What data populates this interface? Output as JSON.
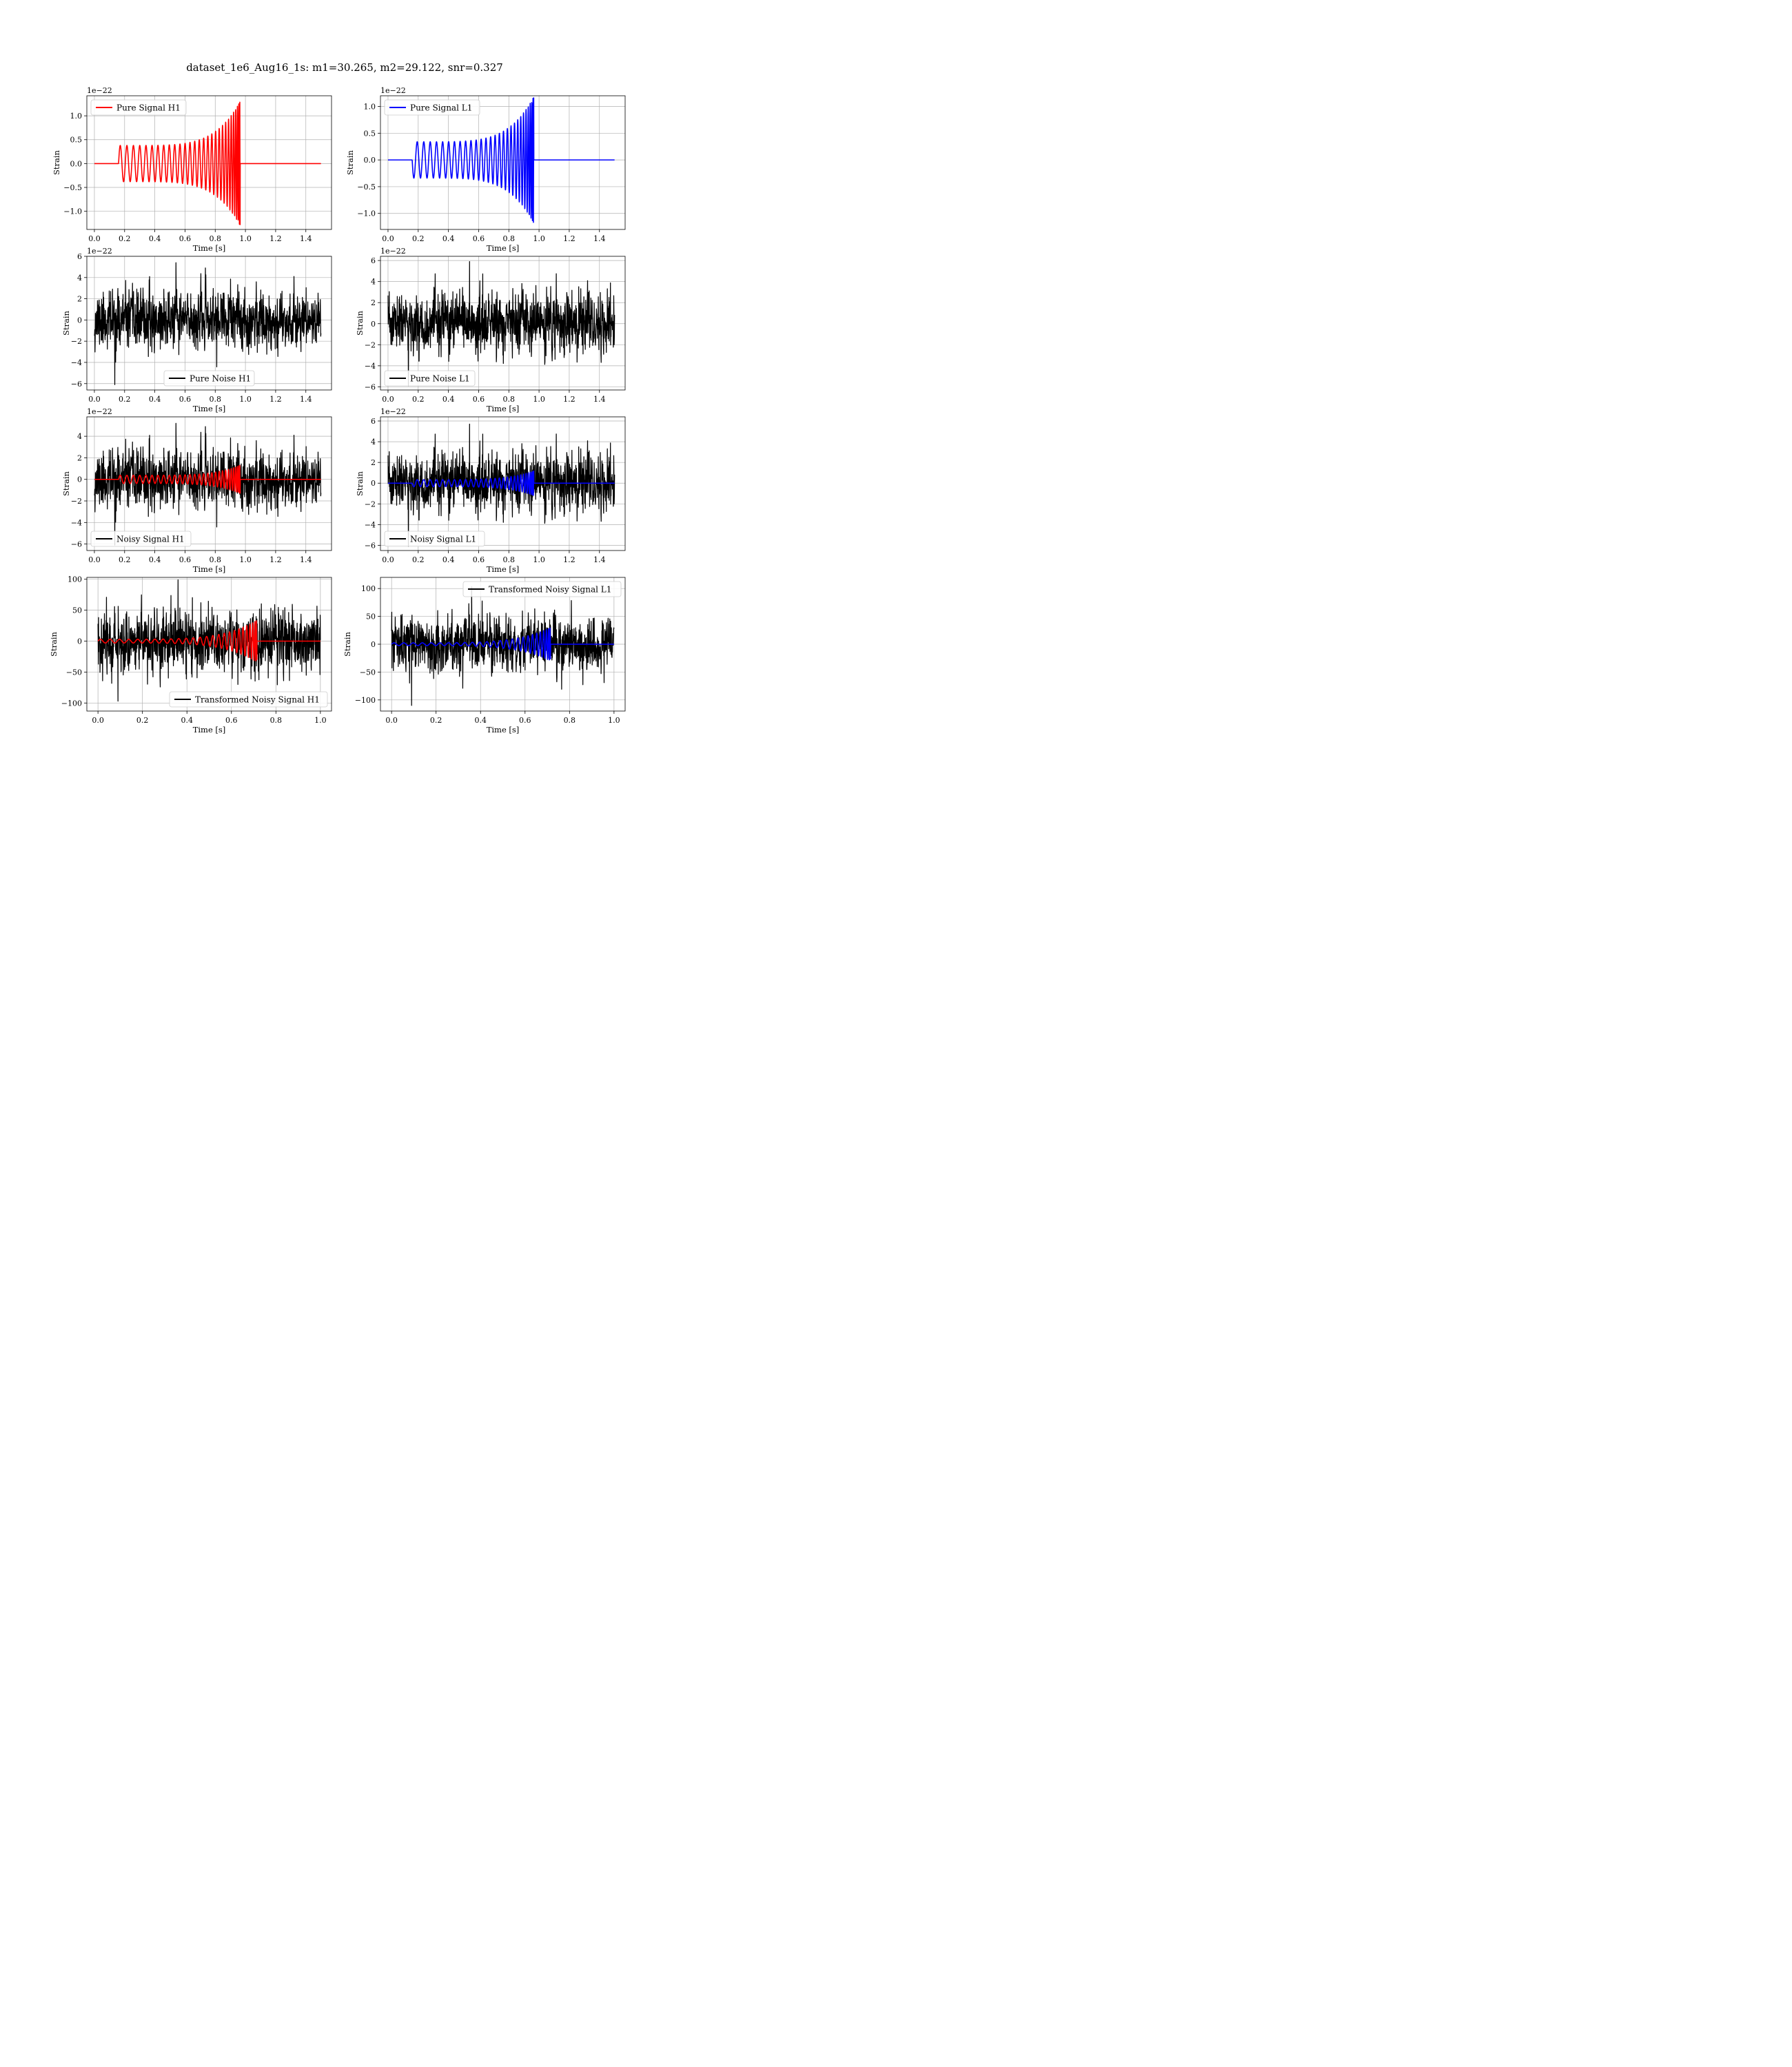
{
  "figure": {
    "title": "dataset_1e6_Aug16_1s: m1=30.265, m2=29.122, snr=0.327"
  },
  "colors": {
    "h1": "#ff0000",
    "l1": "#0000ff",
    "noise": "#000000",
    "grid": "#b0b0b0"
  },
  "chart_data": [
    {
      "id": "pure-signal-h1",
      "type": "line",
      "title": "",
      "xlabel": "Time [s]",
      "ylabel": "Strain",
      "xlim": [
        -0.05,
        1.57
      ],
      "ylim": [
        -1.38,
        1.42
      ],
      "xticks": [
        0.0,
        0.2,
        0.4,
        0.6,
        0.8,
        1.0,
        1.2,
        1.4
      ],
      "xtick_labels": [
        "0.0",
        "0.2",
        "0.4",
        "0.6",
        "0.8",
        "1.0",
        "1.2",
        "1.4"
      ],
      "yticks": [
        -1.0,
        -0.5,
        0.0,
        0.5,
        1.0
      ],
      "ytick_labels": [
        "−1.0",
        "−0.5",
        "0.0",
        "0.5",
        "1.0"
      ],
      "offset_text": "1e−22",
      "grid": true,
      "legend_position": "upper-left",
      "series": [
        {
          "name": "Pure Signal H1",
          "color": "#ff0000",
          "kind": "chirp",
          "chirp": {
            "start": 0.16,
            "end": 0.965,
            "amp_start": 0.38,
            "amp_peak": 1.3,
            "cycles": 29,
            "flat_until": 1.5,
            "polarity": 1
          }
        }
      ]
    },
    {
      "id": "pure-signal-l1",
      "type": "line",
      "title": "",
      "xlabel": "Time [s]",
      "ylabel": "Strain",
      "xlim": [
        -0.05,
        1.57
      ],
      "ylim": [
        -1.3,
        1.2
      ],
      "xticks": [
        0.0,
        0.2,
        0.4,
        0.6,
        0.8,
        1.0,
        1.2,
        1.4
      ],
      "xtick_labels": [
        "0.0",
        "0.2",
        "0.4",
        "0.6",
        "0.8",
        "1.0",
        "1.2",
        "1.4"
      ],
      "yticks": [
        -1.0,
        -0.5,
        0.0,
        0.5,
        1.0
      ],
      "ytick_labels": [
        "−1.0",
        "−0.5",
        "0.0",
        "0.5",
        "1.0"
      ],
      "offset_text": "1e−22",
      "grid": true,
      "legend_position": "upper-left",
      "series": [
        {
          "name": "Pure Signal L1",
          "color": "#0000ff",
          "kind": "chirp",
          "chirp": {
            "start": 0.16,
            "end": 0.965,
            "amp_start": 0.34,
            "amp_peak": 1.18,
            "cycles": 29,
            "flat_until": 1.5,
            "polarity": -1
          }
        }
      ]
    },
    {
      "id": "pure-noise-h1",
      "type": "line",
      "title": "",
      "xlabel": "Time [s]",
      "ylabel": "Strain",
      "xlim": [
        -0.05,
        1.57
      ],
      "ylim": [
        -6.6,
        6.0
      ],
      "xticks": [
        0.0,
        0.2,
        0.4,
        0.6,
        0.8,
        1.0,
        1.2,
        1.4
      ],
      "xtick_labels": [
        "0.0",
        "0.2",
        "0.4",
        "0.6",
        "0.8",
        "1.0",
        "1.2",
        "1.4"
      ],
      "yticks": [
        -6,
        -4,
        -2,
        0,
        2,
        4,
        6
      ],
      "ytick_labels": [
        "−6",
        "−4",
        "−2",
        "0",
        "2",
        "4",
        "6"
      ],
      "offset_text": "1e−22",
      "grid": true,
      "legend_position": "lower-center",
      "series": [
        {
          "name": "Pure Noise H1",
          "color": "#000000",
          "kind": "noise",
          "noise": {
            "x_end": 1.5,
            "std": 1.45,
            "peak_min": -6.1,
            "peak_max": 5.4,
            "seed": 11
          }
        }
      ]
    },
    {
      "id": "pure-noise-l1",
      "type": "line",
      "title": "",
      "xlabel": "Time [s]",
      "ylabel": "Strain",
      "xlim": [
        -0.05,
        1.57
      ],
      "ylim": [
        -6.3,
        6.4
      ],
      "xticks": [
        0.0,
        0.2,
        0.4,
        0.6,
        0.8,
        1.0,
        1.2,
        1.4
      ],
      "xtick_labels": [
        "0.0",
        "0.2",
        "0.4",
        "0.6",
        "0.8",
        "1.0",
        "1.2",
        "1.4"
      ],
      "yticks": [
        -6,
        -4,
        -2,
        0,
        2,
        4,
        6
      ],
      "ytick_labels": [
        "−6",
        "−4",
        "−2",
        "0",
        "2",
        "4",
        "6"
      ],
      "offset_text": "1e−22",
      "grid": true,
      "legend_position": "lower-left",
      "series": [
        {
          "name": "Pure Noise L1",
          "color": "#000000",
          "kind": "noise",
          "noise": {
            "x_end": 1.5,
            "std": 1.5,
            "peak_min": -5.9,
            "peak_max": 5.9,
            "seed": 23
          }
        }
      ]
    },
    {
      "id": "noisy-signal-h1",
      "type": "line",
      "title": "",
      "xlabel": "Time [s]",
      "ylabel": "Strain",
      "xlim": [
        -0.05,
        1.57
      ],
      "ylim": [
        -6.6,
        5.8
      ],
      "xticks": [
        0.0,
        0.2,
        0.4,
        0.6,
        0.8,
        1.0,
        1.2,
        1.4
      ],
      "xtick_labels": [
        "0.0",
        "0.2",
        "0.4",
        "0.6",
        "0.8",
        "1.0",
        "1.2",
        "1.4"
      ],
      "yticks": [
        -6,
        -4,
        -2,
        0,
        2,
        4
      ],
      "ytick_labels": [
        "−6",
        "−4",
        "−2",
        "0",
        "2",
        "4"
      ],
      "offset_text": "1e−22",
      "grid": true,
      "legend_position": "lower-left",
      "series": [
        {
          "name": "Noisy Signal H1",
          "color": "#000000",
          "kind": "noise",
          "noise": {
            "x_end": 1.5,
            "std": 1.45,
            "peak_min": -6.1,
            "peak_max": 5.2,
            "seed": 11
          }
        },
        {
          "name": "",
          "color": "#ff0000",
          "kind": "chirp",
          "chirp": {
            "start": 0.16,
            "end": 0.965,
            "amp_start": 0.38,
            "amp_peak": 1.3,
            "cycles": 29,
            "flat_until": 1.5,
            "polarity": 1
          }
        }
      ]
    },
    {
      "id": "noisy-signal-l1",
      "type": "line",
      "title": "",
      "xlabel": "Time [s]",
      "ylabel": "Strain",
      "xlim": [
        -0.05,
        1.57
      ],
      "ylim": [
        -6.5,
        6.4
      ],
      "xticks": [
        0.0,
        0.2,
        0.4,
        0.6,
        0.8,
        1.0,
        1.2,
        1.4
      ],
      "xtick_labels": [
        "0.0",
        "0.2",
        "0.4",
        "0.6",
        "0.8",
        "1.0",
        "1.2",
        "1.4"
      ],
      "yticks": [
        -6,
        -4,
        -2,
        0,
        2,
        4,
        6
      ],
      "ytick_labels": [
        "−6",
        "−4",
        "−2",
        "0",
        "2",
        "4",
        "6"
      ],
      "offset_text": "1e−22",
      "grid": true,
      "legend_position": "lower-left",
      "series": [
        {
          "name": "Noisy Signal L1",
          "color": "#000000",
          "kind": "noise",
          "noise": {
            "x_end": 1.5,
            "std": 1.5,
            "peak_min": -6.1,
            "peak_max": 5.7,
            "seed": 23
          }
        },
        {
          "name": "",
          "color": "#0000ff",
          "kind": "chirp",
          "chirp": {
            "start": 0.16,
            "end": 0.965,
            "amp_start": 0.34,
            "amp_peak": 1.18,
            "cycles": 29,
            "flat_until": 1.5,
            "polarity": -1
          }
        }
      ]
    },
    {
      "id": "transformed-noisy-signal-h1",
      "type": "line",
      "title": "",
      "xlabel": "Time [s]",
      "ylabel": "Strain",
      "xlim": [
        -0.05,
        1.05
      ],
      "ylim": [
        -113,
        103
      ],
      "xticks": [
        0.0,
        0.2,
        0.4,
        0.6,
        0.8,
        1.0
      ],
      "xtick_labels": [
        "0.0",
        "0.2",
        "0.4",
        "0.6",
        "0.8",
        "1.0"
      ],
      "yticks": [
        -100,
        -50,
        0,
        50,
        100
      ],
      "ytick_labels": [
        "−100",
        "−50",
        "0",
        "50",
        "100"
      ],
      "offset_text": "",
      "grid": true,
      "legend_position": "lower-right",
      "series": [
        {
          "name": "Transformed Noisy Signal H1",
          "color": "#000000",
          "kind": "noise",
          "noise": {
            "x_end": 1.0,
            "std": 27,
            "peak_min": -97,
            "peak_max": 99,
            "seed": 37
          }
        },
        {
          "name": "",
          "color": "#ff0000",
          "kind": "chirp",
          "chirp": {
            "start": 0.0,
            "end": 0.715,
            "amp_start": 3,
            "amp_peak": 34,
            "cycles": 26,
            "flat_until": 1.0,
            "polarity": 1
          }
        }
      ]
    },
    {
      "id": "transformed-noisy-signal-l1",
      "type": "line",
      "title": "",
      "xlabel": "Time [s]",
      "ylabel": "Strain",
      "xlim": [
        -0.05,
        1.05
      ],
      "ylim": [
        -120,
        120
      ],
      "xticks": [
        0.0,
        0.2,
        0.4,
        0.6,
        0.8,
        1.0
      ],
      "xtick_labels": [
        "0.0",
        "0.2",
        "0.4",
        "0.6",
        "0.8",
        "1.0"
      ],
      "yticks": [
        -100,
        -50,
        0,
        50,
        100
      ],
      "ytick_labels": [
        "−100",
        "−50",
        "0",
        "50",
        "100"
      ],
      "offset_text": "",
      "grid": true,
      "legend_position": "upper-right",
      "series": [
        {
          "name": "Transformed Noisy Signal L1",
          "color": "#000000",
          "kind": "noise",
          "noise": {
            "x_end": 1.0,
            "std": 26,
            "peak_min": -110,
            "peak_max": 103,
            "seed": 53
          }
        },
        {
          "name": "",
          "color": "#0000ff",
          "kind": "chirp",
          "chirp": {
            "start": 0.0,
            "end": 0.715,
            "amp_start": 2.5,
            "amp_peak": 30,
            "cycles": 26,
            "flat_until": 1.0,
            "polarity": 1
          }
        }
      ]
    }
  ]
}
